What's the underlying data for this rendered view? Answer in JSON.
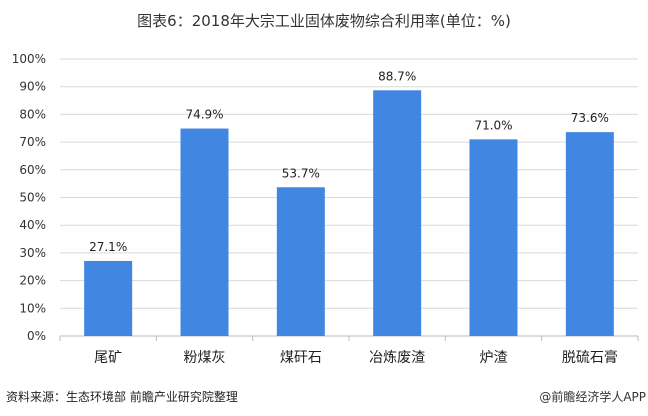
{
  "chart_data": {
    "type": "bar",
    "title": "图表6：2018年大宗工业固体废物综合利用率(单位：%)",
    "categories": [
      "尾矿",
      "粉煤灰",
      "煤矸石",
      "冶炼废渣",
      "炉渣",
      "脱硫石膏"
    ],
    "values": [
      27.1,
      74.9,
      53.7,
      88.7,
      71.0,
      73.6
    ],
    "data_labels": [
      "27.1%",
      "74.9%",
      "53.7%",
      "88.7%",
      "71.0%",
      "73.6%"
    ],
    "ylim": [
      0,
      100
    ],
    "yticks": [
      "0%",
      "10%",
      "20%",
      "30%",
      "40%",
      "50%",
      "60%",
      "70%",
      "80%",
      "90%",
      "100%"
    ],
    "grid": true,
    "bar_color": "#4186E0"
  },
  "footer": {
    "source": "资料来源：生态环境部 前瞻产业研究院整理",
    "brand": "@前瞻经济学人APP"
  }
}
